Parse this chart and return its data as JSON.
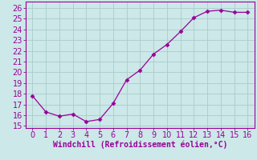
{
  "x": [
    0,
    1,
    2,
    3,
    4,
    5,
    6,
    7,
    8,
    9,
    10,
    11,
    12,
    13,
    14,
    15,
    16
  ],
  "y": [
    17.8,
    16.3,
    15.9,
    16.1,
    15.4,
    15.6,
    17.1,
    19.3,
    20.2,
    21.7,
    22.6,
    23.8,
    25.1,
    25.7,
    25.8,
    25.6,
    25.6
  ],
  "line_color": "#990099",
  "marker": "D",
  "marker_size": 2.5,
  "bg_color": "#cce8e8",
  "grid_color": "#aacccc",
  "xlabel": "Windchill (Refroidissement éolien,°C)",
  "xlabel_color": "#990099",
  "xlim": [
    -0.5,
    16.5
  ],
  "ylim": [
    14.8,
    26.6
  ],
  "xticks": [
    0,
    1,
    2,
    3,
    4,
    5,
    6,
    7,
    8,
    9,
    10,
    11,
    12,
    13,
    14,
    15,
    16
  ],
  "yticks": [
    15,
    16,
    17,
    18,
    19,
    20,
    21,
    22,
    23,
    24,
    25,
    26
  ],
  "tick_label_color": "#990099",
  "axis_color": "#990099",
  "tick_fontsize": 7,
  "xlabel_fontsize": 7
}
